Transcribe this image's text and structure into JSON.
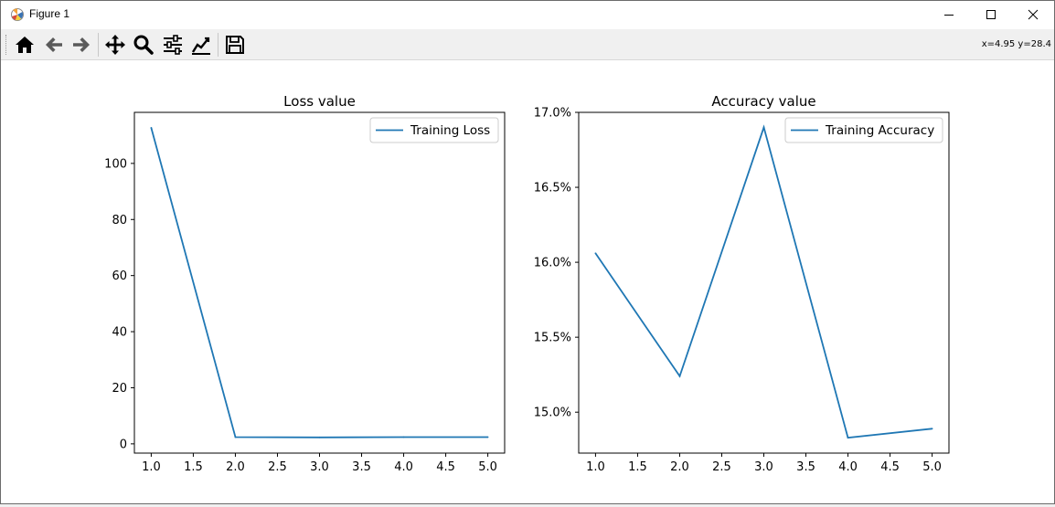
{
  "window": {
    "title": "Figure 1",
    "buttons": [
      "minimize",
      "maximize",
      "close"
    ]
  },
  "toolbar": {
    "items": [
      {
        "name": "home-icon",
        "label": "Home"
      },
      {
        "name": "back-icon",
        "label": "Back"
      },
      {
        "name": "forward-icon",
        "label": "Forward"
      },
      {
        "name": "pan-icon",
        "label": "Pan"
      },
      {
        "name": "zoom-icon",
        "label": "Zoom"
      },
      {
        "name": "subplots-icon",
        "label": "Subplots"
      },
      {
        "name": "customize-icon",
        "label": "Customize"
      },
      {
        "name": "save-icon",
        "label": "Save"
      }
    ],
    "coordinates": "x=4.95 y=28.4"
  },
  "colors": {
    "series": "#1f77b4",
    "axes": "#000000"
  },
  "chart_data": [
    {
      "type": "line",
      "title": "Loss value",
      "xlabel": "",
      "ylabel": "",
      "x": [
        1,
        2,
        3,
        4,
        5
      ],
      "series": [
        {
          "name": "Training Loss",
          "values": [
            112.7,
            2.4,
            2.3,
            2.4,
            2.4
          ]
        }
      ],
      "xlim": [
        0.8,
        5.2
      ],
      "ylim": [
        -3.3,
        118.2
      ],
      "xticks": [
        1.0,
        1.5,
        2.0,
        2.5,
        3.0,
        3.5,
        4.0,
        4.5,
        5.0
      ],
      "xtick_labels": [
        "1.0",
        "1.5",
        "2.0",
        "2.5",
        "3.0",
        "3.5",
        "4.0",
        "4.5",
        "5.0"
      ],
      "yticks": [
        0,
        20,
        40,
        60,
        80,
        100
      ],
      "ytick_labels": [
        "0",
        "20",
        "40",
        "60",
        "80",
        "100"
      ],
      "legend": "upper right",
      "grid": false
    },
    {
      "type": "line",
      "title": "Accuracy value",
      "xlabel": "",
      "ylabel": "",
      "x": [
        1,
        2,
        3,
        4,
        5
      ],
      "series": [
        {
          "name": "Training Accuracy",
          "values": [
            0.1606,
            0.1524,
            0.169,
            0.1483,
            0.1489
          ]
        }
      ],
      "xlim": [
        0.8,
        5.2
      ],
      "ylim": [
        0.14727,
        0.17
      ],
      "xticks": [
        1.0,
        1.5,
        2.0,
        2.5,
        3.0,
        3.5,
        4.0,
        4.5,
        5.0
      ],
      "xtick_labels": [
        "1.0",
        "1.5",
        "2.0",
        "2.5",
        "3.0",
        "3.5",
        "4.0",
        "4.5",
        "5.0"
      ],
      "yticks": [
        0.15,
        0.155,
        0.16,
        0.165,
        0.17
      ],
      "ytick_labels": [
        "15.0%",
        "15.5%",
        "16.0%",
        "16.5%",
        "17.0%"
      ],
      "legend": "upper right",
      "grid": false
    }
  ]
}
